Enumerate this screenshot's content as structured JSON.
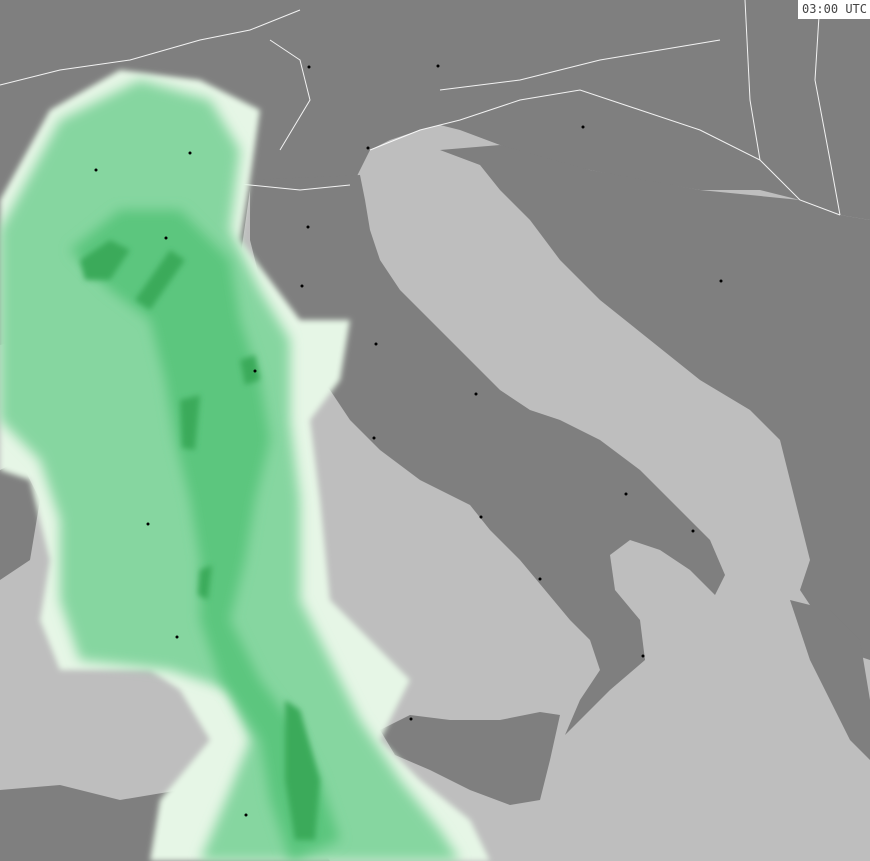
{
  "timestamp": "03:00 UTC",
  "colors": {
    "sea": "#bebebe",
    "land": "#7f7f7f",
    "border": "#ffffff",
    "precip_light": "#e6f6e6",
    "precip_low": "#86d6a0",
    "precip_mid": "#5cc67e",
    "precip_high": "#3aaa5a"
  },
  "layers": [
    "land",
    "sea",
    "borders",
    "precipitation",
    "cities"
  ]
}
